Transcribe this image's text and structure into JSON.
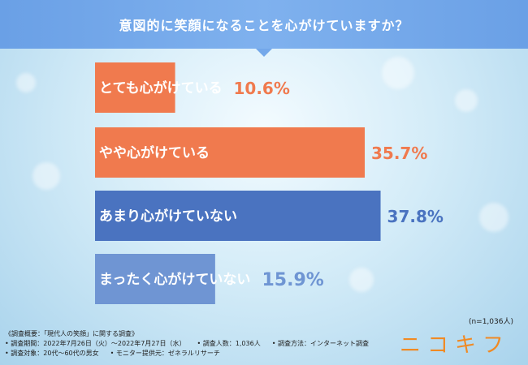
{
  "title": "意図的に笑顔になることを心がけていますか？",
  "chart_data": {
    "type": "bar",
    "orientation": "horizontal",
    "categories": [
      "とても心がけている",
      "やや心がけている",
      "あまり心がけていない",
      "まったく心がけていない"
    ],
    "values": [
      10.6,
      35.7,
      37.8,
      15.9
    ],
    "value_labels": [
      "10.6%",
      "35.7%",
      "37.8%",
      "15.9%"
    ],
    "colors": [
      "#f07a4e",
      "#f07a4e",
      "#4a73c0",
      "#6f95d3"
    ],
    "label_colors": [
      "#f07a4e",
      "#f07a4e",
      "#4a73c0",
      "#6f95d3"
    ],
    "xlim": [
      0,
      40
    ]
  },
  "note": "(n=1,036人)",
  "survey": {
    "heading": "《調査概要：「現代人の笑顔」に関する調査》",
    "period": "• 調査期間：2022年7月26日（火）〜2022年7月27日（水）",
    "respondents": "• 調査人数：1,036人",
    "method": "• 調査方法：インターネット調査",
    "target": "• 調査対象：20代〜60代の男女",
    "provider": "• モニター提供元：ゼネラルリサーチ"
  },
  "logo": "ニコキフ"
}
